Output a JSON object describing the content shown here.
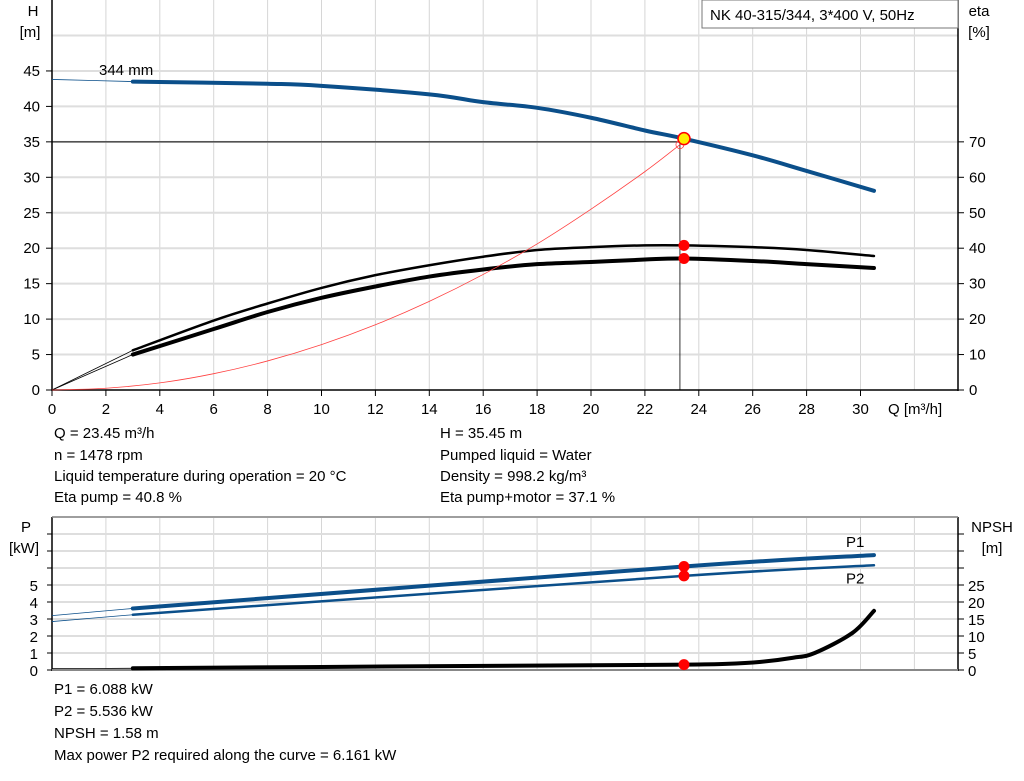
{
  "chart_data": [
    {
      "type": "line",
      "title": "NK 40-315/344, 3*400 V, 50Hz",
      "xlabel": "Q [m³/h]",
      "ylabel": "H [m]",
      "ylabel_name": "H",
      "ylabel_unit": "[m]",
      "y2label_name": "eta",
      "y2label_unit": "[%]",
      "xlim": [
        0,
        33.6
      ],
      "ylim": [
        0,
        55
      ],
      "y2lim": [
        0,
        110
      ],
      "x_ticks": [
        "0",
        "2",
        "4",
        "6",
        "8",
        "10",
        "12",
        "14",
        "16",
        "18",
        "20",
        "22",
        "24",
        "26",
        "28",
        "30"
      ],
      "y_ticks": [
        "0",
        "5",
        "10",
        "15",
        "20",
        "25",
        "30",
        "35",
        "40",
        "45"
      ],
      "y2_ticks": [
        "0",
        "10",
        "20",
        "30",
        "40",
        "50",
        "60",
        "70"
      ],
      "grid": true,
      "curve_label": "344 mm",
      "series": [
        {
          "key": "H",
          "axis": "left",
          "color": "#0b4f8a",
          "x": [
            0,
            3,
            8,
            10,
            14,
            16,
            18,
            20,
            22,
            23.45,
            26,
            28,
            30.5
          ],
          "y": [
            43.8,
            43.5,
            43.2,
            42.9,
            41.7,
            40.6,
            39.8,
            38.4,
            36.6,
            35.45,
            33.1,
            30.9,
            28.1
          ]
        },
        {
          "key": "eta_pump",
          "axis": "right",
          "color": "#000000",
          "x": [
            0,
            3,
            6,
            8,
            10,
            12,
            14,
            16,
            18,
            20,
            22,
            23.45,
            26,
            28,
            30.5
          ],
          "y": [
            0,
            11.2,
            19.6,
            24.4,
            28.8,
            32.4,
            35.2,
            37.6,
            39.5,
            40.3,
            40.8,
            40.8,
            40.3,
            39.5,
            37.8
          ]
        },
        {
          "key": "eta_pump_motor",
          "axis": "right",
          "color": "#000000",
          "x": [
            0,
            3,
            6,
            8,
            10,
            12,
            14,
            16,
            18,
            20,
            22,
            23.45,
            26,
            28,
            30.5
          ],
          "y": [
            0,
            10,
            17.2,
            22,
            26,
            29.2,
            32,
            34,
            35.5,
            36.1,
            36.8,
            37.1,
            36.4,
            35.5,
            34.4
          ]
        },
        {
          "key": "system",
          "axis": "left",
          "color": "#ff4040",
          "x": [
            0,
            2,
            4,
            6,
            8,
            10,
            12,
            14,
            16,
            18,
            20,
            22,
            23.3
          ],
          "y": [
            0,
            0.25,
            1.0,
            2.3,
            4.1,
            6.4,
            9.2,
            12.5,
            16.3,
            20.6,
            25.5,
            30.8,
            34.6
          ]
        }
      ],
      "operating_point": {
        "Q": 23.45,
        "H": 35.45,
        "eta_pump": 40.8,
        "eta_pump_motor": 37.1
      },
      "reference_lines": {
        "Q": 23.3,
        "H": 35
      }
    },
    {
      "type": "line",
      "ylabel_name": "P",
      "ylabel_unit": "[kW]",
      "y2label_name": "NPSH",
      "y2label_unit": "[m]",
      "xlim": [
        0,
        33.6
      ],
      "ylim": [
        0,
        9
      ],
      "y2lim": [
        0,
        45
      ],
      "y_ticks": [
        "0",
        "1",
        "2",
        "3",
        "4",
        "5"
      ],
      "y2_ticks": [
        "0",
        "5",
        "10",
        "15",
        "20",
        "25"
      ],
      "grid": true,
      "series": [
        {
          "key": "P1",
          "name": "P1",
          "axis": "left",
          "color": "#0b4f8a",
          "x": [
            0,
            3,
            23.45,
            30.5
          ],
          "y": [
            3.2,
            3.62,
            6.088,
            6.76
          ]
        },
        {
          "key": "P2",
          "name": "P2",
          "axis": "left",
          "color": "#0b4f8a",
          "x": [
            0,
            3,
            23.45,
            30.5
          ],
          "y": [
            2.85,
            3.25,
            5.536,
            6.161
          ]
        },
        {
          "key": "NPSH",
          "axis": "right",
          "color": "#000000",
          "x": [
            0,
            3,
            10,
            20,
            23.45,
            25,
            26.3,
            27.5,
            28.3,
            29.7,
            30.5
          ],
          "y": [
            0.4,
            0.5,
            0.9,
            1.4,
            1.58,
            1.8,
            2.4,
            3.6,
            5,
            10.9,
            17.4
          ]
        }
      ],
      "operating_point": {
        "Q": 23.45,
        "P1": 6.088,
        "P2": 5.536,
        "NPSH": 1.58
      }
    }
  ],
  "info_top": {
    "left": [
      "Q = 23.45 m³/h",
      "n = 1478 rpm",
      "Liquid temperature during operation = 20 °C",
      "Eta pump = 40.8 %"
    ],
    "right": [
      "H = 35.45 m",
      "Pumped liquid = Water",
      "Density = 998.2 kg/m³",
      "Eta pump+motor = 37.1 %"
    ]
  },
  "info_bottom": [
    "P1 = 6.088 kW",
    "P2 = 5.536 kW",
    "NPSH = 1.58 m",
    "Max power P2 required along the curve = 6.161 kW"
  ]
}
